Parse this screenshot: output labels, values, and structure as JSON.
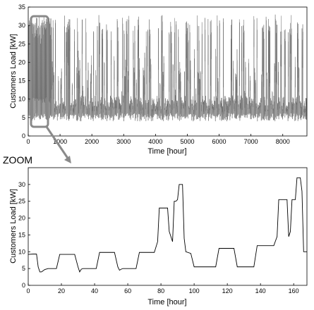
{
  "annotation": {
    "zoom_label": "ZOOM"
  },
  "colors": {
    "top_series": "#6a6a6a",
    "top_series_dark": "#222222",
    "bottom_series": "#000000",
    "highlight_box": "#8a8a8a",
    "arrow": "#8a8a8a"
  },
  "chart_data": [
    {
      "type": "line",
      "title": "",
      "xlabel": "Time [hour]",
      "ylabel": "Customers Load [kW]",
      "xlim": [
        0,
        8760
      ],
      "ylim": [
        0,
        35
      ],
      "xticks": [
        0,
        1000,
        2000,
        3000,
        4000,
        5000,
        6000,
        7000,
        8000
      ],
      "yticks": [
        0,
        5,
        10,
        15,
        20,
        25,
        30,
        35
      ],
      "grid": false,
      "series": [
        {
          "description_of_shape": "dense hourly load for a full year; each day drops to a night base of about 4-6 kW and rises to a daily peak; peaks ~30-32 kW and daily base ~9-10 kW during the first ~700 h, daily peaks ~10-25 kW and up to ~32-33 kW for the rest of the year",
          "values": []
        }
      ],
      "zoom_window_x": [
        0,
        168
      ],
      "zoom_window_y": [
        0,
        33
      ]
    },
    {
      "type": "line",
      "title": "",
      "xlabel": "Time [hour]",
      "ylabel": "Customers Load [kW]",
      "xlim": [
        0,
        168
      ],
      "ylim": [
        0,
        35
      ],
      "xticks": [
        0,
        20,
        40,
        60,
        80,
        100,
        120,
        140,
        160
      ],
      "yticks": [
        0,
        5,
        10,
        15,
        20,
        25,
        30
      ],
      "grid": false,
      "series": [
        {
          "x": [
            0,
            3,
            5,
            6,
            7,
            8,
            10,
            12,
            17,
            19,
            28,
            30,
            31,
            32,
            33,
            36,
            41,
            43,
            52,
            54,
            55,
            56,
            57,
            60,
            65,
            67,
            76,
            78,
            79,
            83,
            84,
            85,
            87,
            88,
            89,
            90,
            91,
            92,
            93,
            94,
            95,
            98,
            100,
            103,
            113,
            115,
            124,
            126,
            127,
            131,
            136,
            138,
            148,
            150,
            151,
            155,
            156,
            157,
            158,
            159,
            160,
            161,
            162,
            164,
            165,
            166,
            168
          ],
          "y": [
            9.2,
            9.3,
            9.3,
            5.5,
            4.0,
            4.0,
            4.7,
            5.0,
            5.0,
            9.2,
            9.2,
            5.5,
            4.0,
            4.8,
            5.0,
            5.0,
            5.0,
            9.8,
            9.8,
            5.5,
            4.5,
            4.8,
            5.0,
            5.0,
            5.0,
            9.8,
            9.8,
            13.0,
            23.0,
            23.0,
            23.0,
            16.0,
            13.0,
            25.0,
            25.0,
            25.5,
            30.0,
            30.0,
            30.0,
            14.0,
            10.0,
            9.5,
            5.5,
            5.5,
            5.5,
            11.0,
            11.0,
            5.5,
            5.5,
            5.5,
            5.5,
            11.8,
            11.8,
            14.5,
            25.5,
            25.5,
            25.5,
            14.5,
            16.0,
            25.5,
            25.5,
            25.5,
            32.0,
            32.0,
            28.0,
            10.0,
            10.0
          ]
        }
      ]
    }
  ]
}
